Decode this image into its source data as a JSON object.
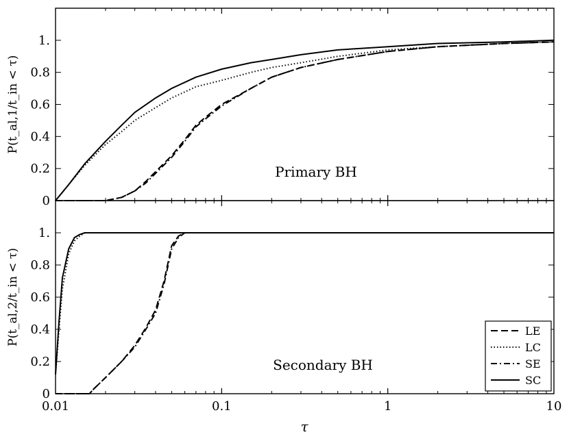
{
  "chart_data": [
    {
      "type": "line",
      "panel": "top",
      "annotation": "Primary BH",
      "ylabel": "P(t_al,1/t_in < τ)",
      "xlabel": "",
      "xscale": "log",
      "xlim": [
        0.01,
        10
      ],
      "ylim": [
        0,
        1.2
      ],
      "yticks": [
        "0",
        "0.2",
        "0.4",
        "0.6",
        "0.8",
        "1."
      ],
      "ytick_values": [
        0,
        0.2,
        0.4,
        0.6,
        0.8,
        1.0
      ],
      "series": [
        {
          "name": "LE",
          "style": "dashed",
          "x": [
            0.01,
            0.02,
            0.025,
            0.03,
            0.035,
            0.04,
            0.05,
            0.06,
            0.07,
            0.08,
            0.1,
            0.15,
            0.2,
            0.3,
            0.5,
            1,
            2,
            5,
            10
          ],
          "y": [
            0,
            0,
            0.02,
            0.06,
            0.12,
            0.18,
            0.28,
            0.38,
            0.47,
            0.52,
            0.6,
            0.7,
            0.77,
            0.83,
            0.88,
            0.93,
            0.96,
            0.98,
            0.99
          ]
        },
        {
          "name": "LC",
          "style": "dotted",
          "x": [
            0.01,
            0.012,
            0.015,
            0.02,
            0.025,
            0.03,
            0.04,
            0.05,
            0.07,
            0.1,
            0.15,
            0.2,
            0.3,
            0.5,
            1,
            2,
            5,
            10
          ],
          "y": [
            0,
            0.1,
            0.22,
            0.35,
            0.43,
            0.5,
            0.58,
            0.64,
            0.71,
            0.75,
            0.8,
            0.83,
            0.86,
            0.9,
            0.94,
            0.96,
            0.98,
            0.99
          ]
        },
        {
          "name": "SE",
          "style": "dashdot",
          "x": [
            0.01,
            0.02,
            0.025,
            0.03,
            0.035,
            0.04,
            0.05,
            0.06,
            0.07,
            0.08,
            0.1,
            0.15,
            0.2,
            0.3,
            0.5,
            1,
            2,
            5,
            10
          ],
          "y": [
            0,
            0,
            0.02,
            0.06,
            0.11,
            0.17,
            0.27,
            0.37,
            0.46,
            0.51,
            0.59,
            0.7,
            0.77,
            0.83,
            0.88,
            0.93,
            0.96,
            0.98,
            0.99
          ]
        },
        {
          "name": "SC",
          "style": "solid",
          "x": [
            0.01,
            0.012,
            0.015,
            0.02,
            0.025,
            0.03,
            0.04,
            0.05,
            0.07,
            0.1,
            0.15,
            0.2,
            0.3,
            0.5,
            1,
            2,
            5,
            10
          ],
          "y": [
            0,
            0.1,
            0.23,
            0.37,
            0.47,
            0.55,
            0.64,
            0.7,
            0.77,
            0.82,
            0.86,
            0.88,
            0.91,
            0.94,
            0.96,
            0.98,
            0.99,
            1.0
          ]
        }
      ]
    },
    {
      "type": "line",
      "panel": "bottom",
      "annotation": "Secondary BH",
      "ylabel": "P(t_al,2/t_in < τ)",
      "xlabel": "τ",
      "xscale": "log",
      "xlim": [
        0.01,
        10
      ],
      "ylim": [
        0,
        1.2
      ],
      "yticks": [
        "0",
        "0.2",
        "0.4",
        "0.6",
        "0.8",
        "1."
      ],
      "ytick_values": [
        0,
        0.2,
        0.4,
        0.6,
        0.8,
        1.0
      ],
      "xticks": [
        "0.01",
        "0.1",
        "1",
        "10"
      ],
      "xtick_values": [
        0.01,
        0.1,
        1,
        10
      ],
      "legend": {
        "position": "lower right",
        "entries": [
          "LE",
          "LC",
          "SE",
          "SC"
        ]
      },
      "series": [
        {
          "name": "LE",
          "style": "dashed",
          "x": [
            0.01,
            0.016,
            0.017,
            0.02,
            0.025,
            0.03,
            0.035,
            0.04,
            0.045,
            0.05,
            0.055,
            0.06,
            0.07,
            10
          ],
          "y": [
            0,
            0,
            0.03,
            0.1,
            0.2,
            0.3,
            0.41,
            0.52,
            0.7,
            0.92,
            0.98,
            1.0,
            1.0,
            1.0
          ]
        },
        {
          "name": "LC",
          "style": "dotted",
          "x": [
            0.01,
            0.0105,
            0.011,
            0.012,
            0.013,
            0.014,
            0.015,
            0.016,
            10
          ],
          "y": [
            0.12,
            0.4,
            0.65,
            0.87,
            0.95,
            0.98,
            1.0,
            1.0,
            1.0
          ]
        },
        {
          "name": "SE",
          "style": "dashdot",
          "x": [
            0.01,
            0.016,
            0.017,
            0.02,
            0.025,
            0.03,
            0.035,
            0.04,
            0.045,
            0.05,
            0.055,
            0.06,
            0.07,
            10
          ],
          "y": [
            0,
            0,
            0.03,
            0.1,
            0.2,
            0.29,
            0.4,
            0.5,
            0.68,
            0.9,
            0.97,
            1.0,
            1.0,
            1.0
          ]
        },
        {
          "name": "SC",
          "style": "solid",
          "x": [
            0.01,
            0.0105,
            0.011,
            0.012,
            0.013,
            0.014,
            0.015,
            0.016,
            10
          ],
          "y": [
            0.12,
            0.45,
            0.72,
            0.9,
            0.97,
            0.99,
            1.0,
            1.0,
            1.0
          ]
        }
      ]
    }
  ]
}
